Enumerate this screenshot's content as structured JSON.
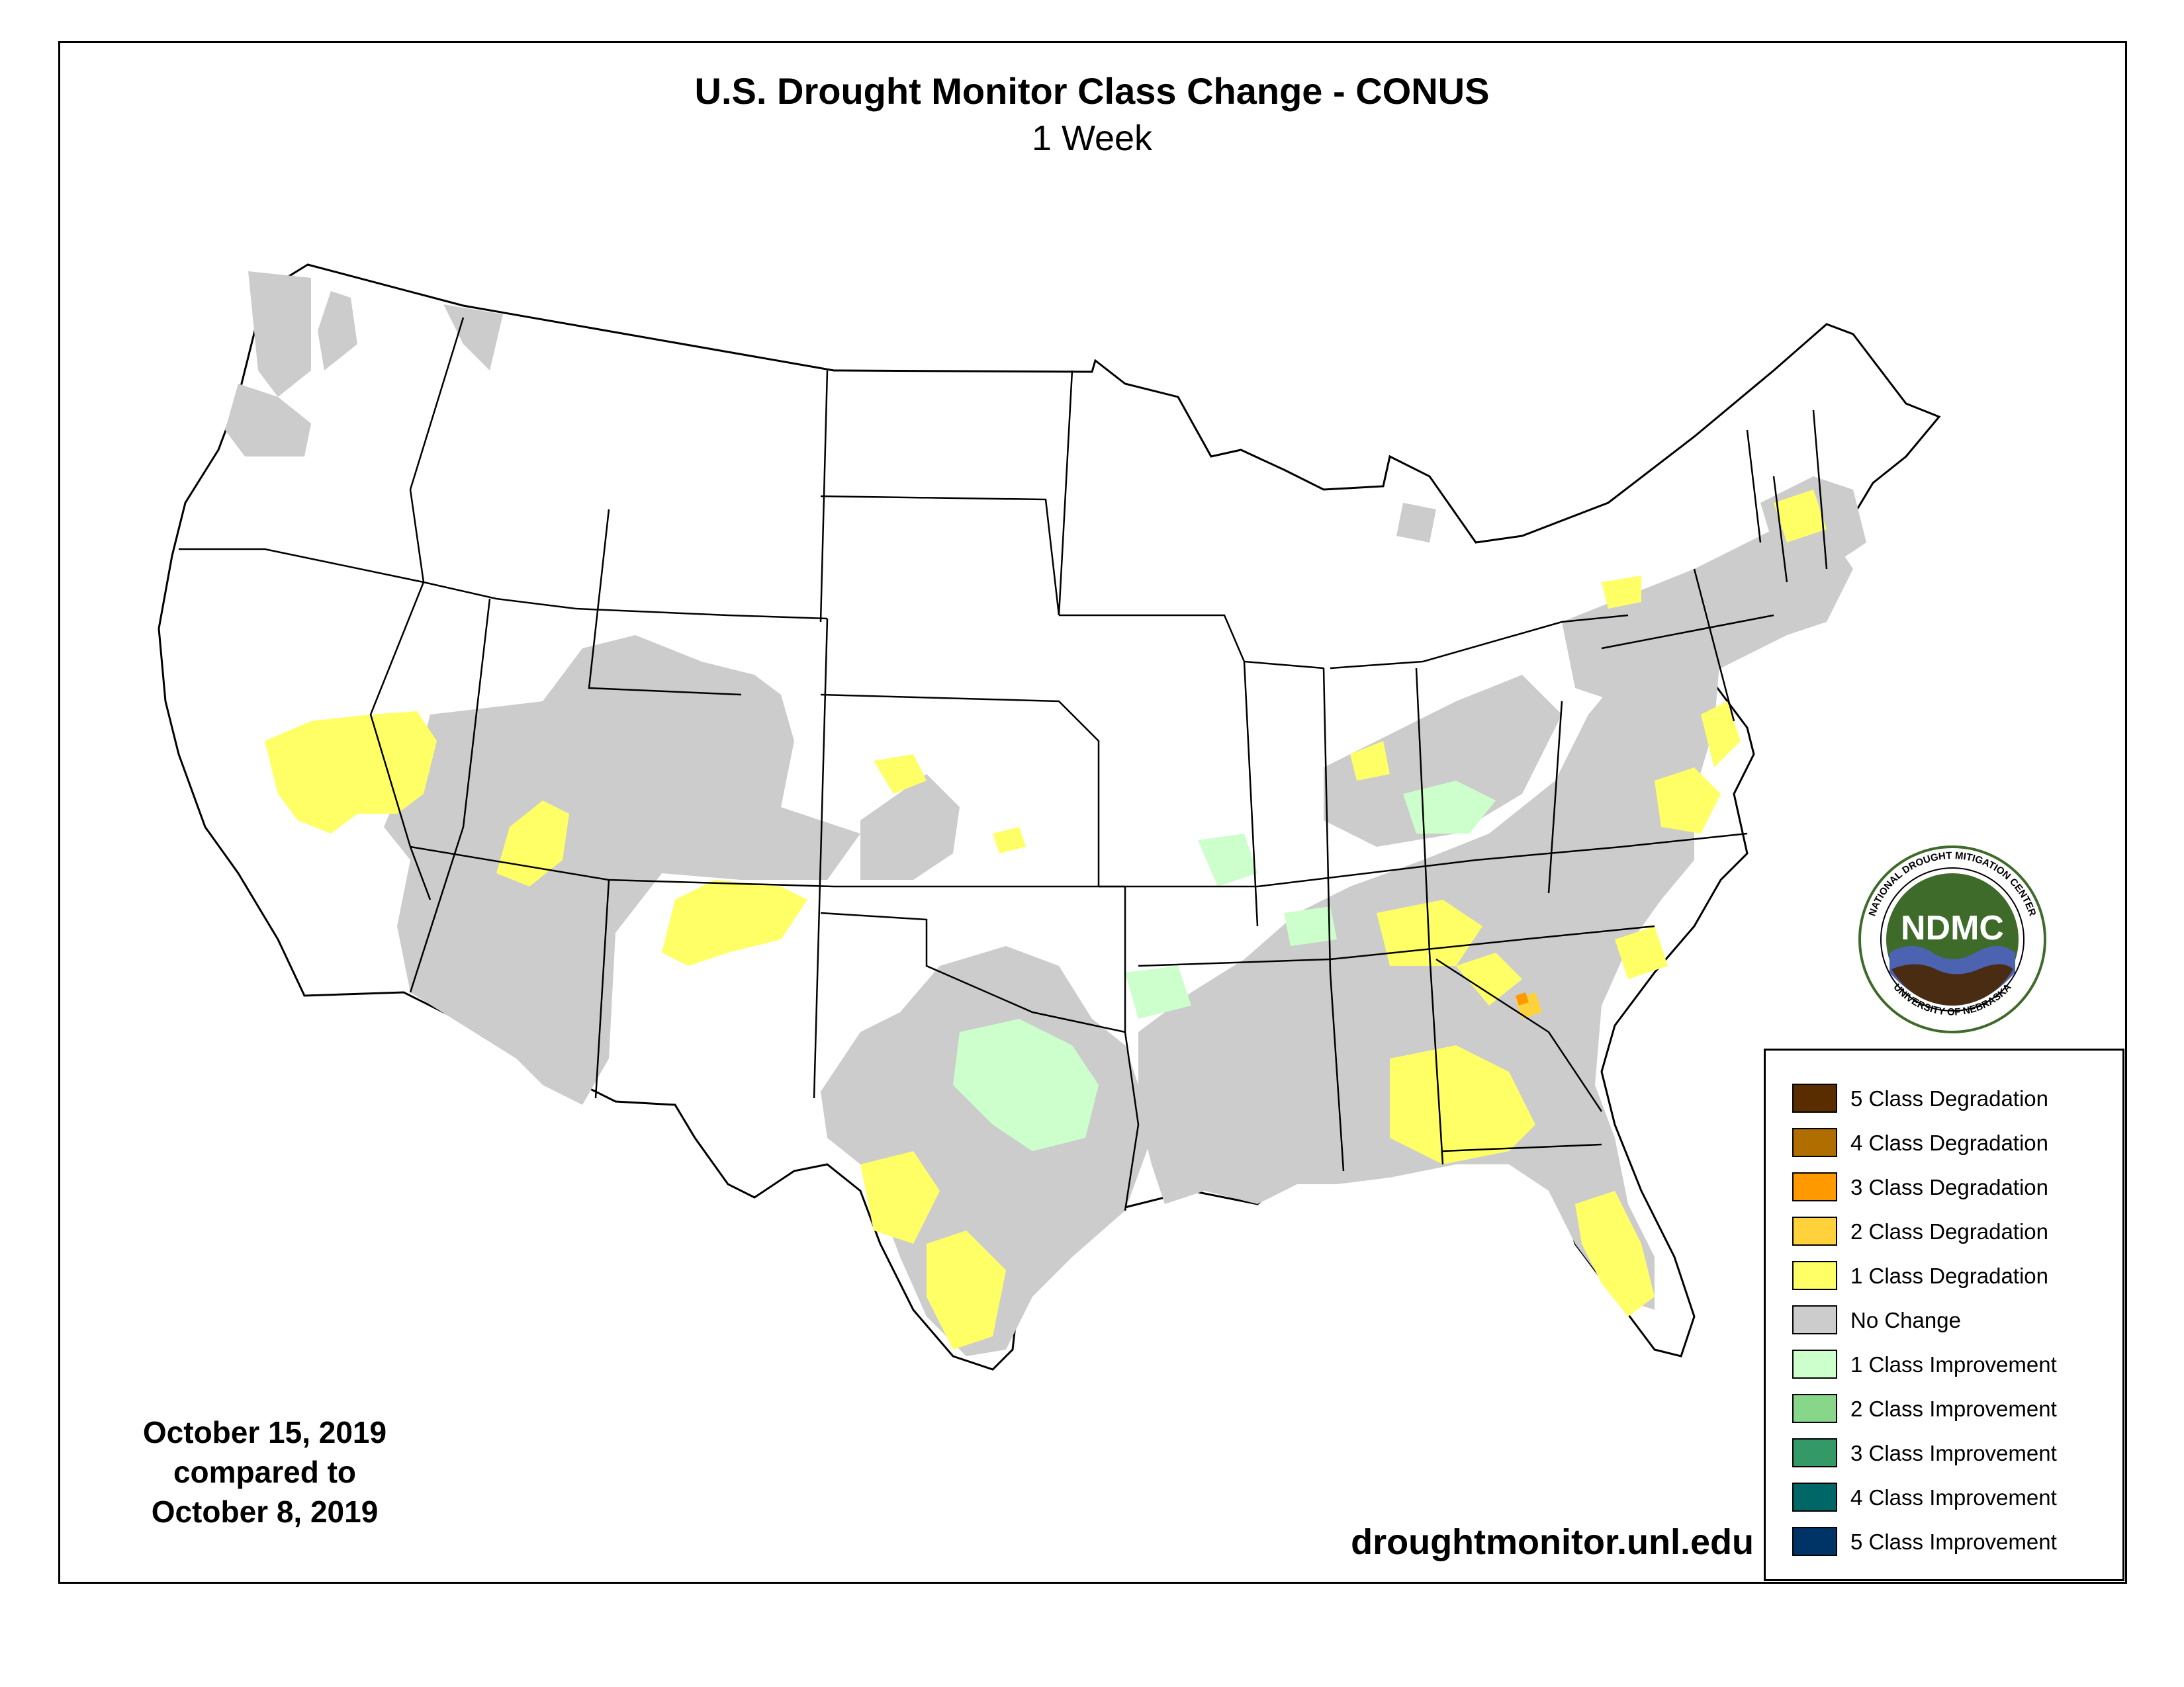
{
  "title": "U.S. Drought Monitor Class Change - CONUS",
  "subtitle": "1 Week",
  "date_block": {
    "line1": "October 15, 2019",
    "line2": "compared to",
    "line3": "October 8, 2019"
  },
  "url": "droughtmonitor.unl.edu",
  "logo": {
    "center_text": "NDMC",
    "ring_top": "NATIONAL DROUGHT MITIGATION CENTER",
    "ring_bottom": "UNIVERSITY OF NEBRASKA"
  },
  "legend": {
    "items": [
      {
        "label": "5 Class Degradation",
        "color": "#5a2d00"
      },
      {
        "label": "4 Class Degradation",
        "color": "#b06e00"
      },
      {
        "label": "3 Class Degradation",
        "color": "#ff9900"
      },
      {
        "label": "2 Class Degradation",
        "color": "#ffd23c"
      },
      {
        "label": "1 Class Degradation",
        "color": "#ffff66"
      },
      {
        "label": "No Change",
        "color": "#cccccc"
      },
      {
        "label": "1 Class Improvement",
        "color": "#ccffcc"
      },
      {
        "label": "2 Class Improvement",
        "color": "#88d68a"
      },
      {
        "label": "3 Class Improvement",
        "color": "#339966"
      },
      {
        "label": "4 Class Improvement",
        "color": "#006666"
      },
      {
        "label": "5 Class Improvement",
        "color": "#003366"
      }
    ]
  },
  "colors": {
    "no_change": "#cccccc",
    "degradation_1": "#ffff66",
    "degradation_2": "#ffd23c",
    "degradation_3": "#ff9900",
    "improvement_1": "#ccffcc",
    "improvement_2": "#88d68a",
    "state_border": "#000000",
    "logo_green": "#3f6b2a",
    "logo_blue": "#4b63b0",
    "logo_brown": "#4a2c12"
  }
}
